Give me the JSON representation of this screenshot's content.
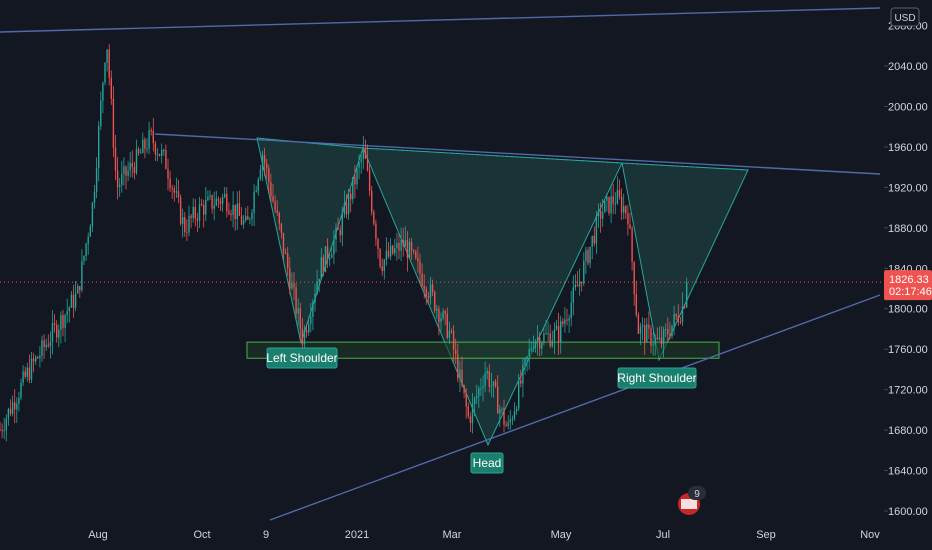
{
  "currency": "USD",
  "last_price": "1826.33",
  "countdown": "02:17:46",
  "event_count": "9",
  "colors": {
    "background": "#131722",
    "up": "#26a69a",
    "down": "#ef5350",
    "pattern_fill": "#1f4a47",
    "pattern_line": "#26a69a",
    "trendline": "#4f6aa8",
    "neckline_border": "#4caf50",
    "price_line": "#ef5350"
  },
  "chart_data": {
    "type": "candlestick",
    "ylim": [
      1590,
      2085
    ],
    "y_ticks": [
      1600,
      1640,
      1680,
      1720,
      1760,
      1800,
      1840,
      1880,
      1920,
      1960,
      2000,
      2040
    ],
    "y_tick_labels": [
      "1600.00",
      "1640.00",
      "1680.00",
      "1720.00",
      "1760.00",
      "1800.00",
      "1840.00",
      "1880.00",
      "1920.00",
      "1960.00",
      "2000.00",
      "2040.00"
    ],
    "x_ticks": [
      "Aug",
      "Oct",
      "9",
      "2021",
      "Mar",
      "May",
      "Jul",
      "Sep",
      "Nov"
    ],
    "price_path": [
      [
        "2020-06-01",
        1670
      ],
      [
        "2020-06-20",
        1735
      ],
      [
        "2020-07-05",
        1775
      ],
      [
        "2020-07-20",
        1815
      ],
      [
        "2020-07-29",
        1905
      ],
      [
        "2020-08-06",
        2070
      ],
      [
        "2020-08-12",
        1920
      ],
      [
        "2020-08-25",
        1950
      ],
      [
        "2020-09-01",
        1970
      ],
      [
        "2020-09-10",
        1945
      ],
      [
        "2020-09-21",
        1880
      ],
      [
        "2020-10-01",
        1900
      ],
      [
        "2020-10-15",
        1910
      ],
      [
        "2020-10-28",
        1880
      ],
      [
        "2020-11-06",
        1955
      ],
      [
        "2020-11-16",
        1880
      ],
      [
        "2020-11-30",
        1770
      ],
      [
        "2020-12-10",
        1840
      ],
      [
        "2020-12-21",
        1875
      ],
      [
        "2021-01-05",
        1955
      ],
      [
        "2021-01-15",
        1845
      ],
      [
        "2021-01-29",
        1865
      ],
      [
        "2021-02-12",
        1820
      ],
      [
        "2021-02-25",
        1775
      ],
      [
        "2021-03-08",
        1690
      ],
      [
        "2021-03-18",
        1740
      ],
      [
        "2021-03-31",
        1680
      ],
      [
        "2021-04-15",
        1770
      ],
      [
        "2021-04-30",
        1775
      ],
      [
        "2021-05-12",
        1825
      ],
      [
        "2021-05-25",
        1895
      ],
      [
        "2021-06-03",
        1910
      ],
      [
        "2021-06-10",
        1895
      ],
      [
        "2021-06-16",
        1780
      ],
      [
        "2021-06-29",
        1765
      ],
      [
        "2021-07-12",
        1800
      ],
      [
        "2021-07-16",
        1826.33
      ]
    ],
    "price_range": [
      1670,
      2075
    ],
    "pattern": "Inverse Head and Shoulders",
    "annotations": [
      "Left Shoulder",
      "Head",
      "Right Shoulder"
    ],
    "neckline_zone": [
      1756,
      1764
    ]
  },
  "labels": {
    "left_shoulder": "Left Shoulder",
    "head": "Head",
    "right_shoulder": "Right Shoulder"
  }
}
